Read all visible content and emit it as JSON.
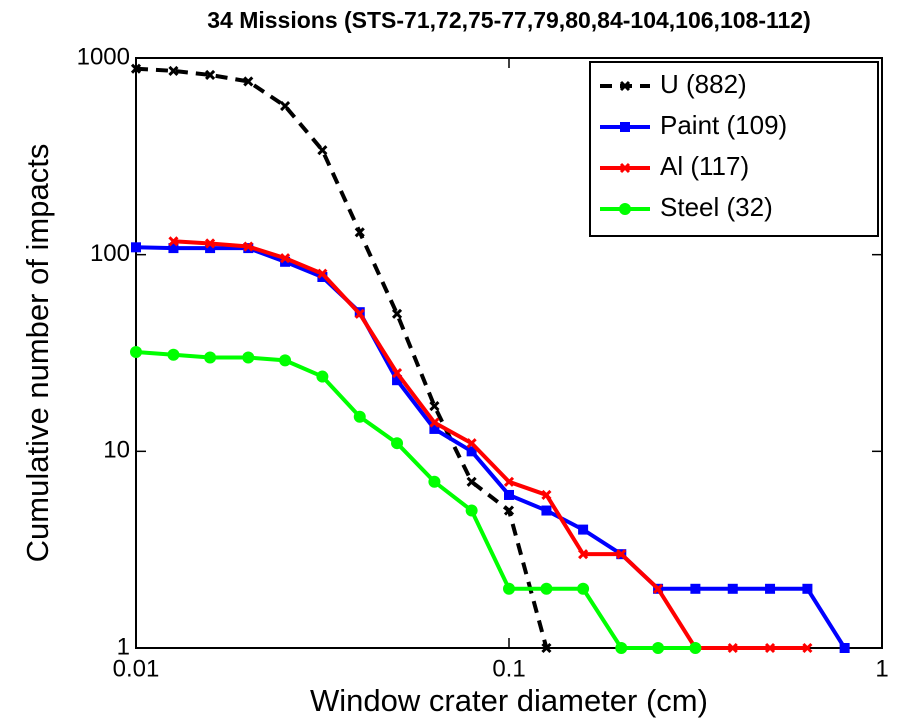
{
  "chart_data": {
    "type": "line",
    "title": "34 Missions (STS-71,72,75-77,79,80,84-104,106,108-112)",
    "xlabel": "Window crater diameter (cm)",
    "ylabel": "Cumulative number of impacts",
    "xscale": "log",
    "yscale": "log",
    "xlim": [
      0.01,
      1
    ],
    "ylim": [
      1,
      1000
    ],
    "xticks": [
      0.01,
      0.1,
      1
    ],
    "yticks": [
      1,
      10,
      100,
      1000
    ],
    "legend": "upper right",
    "series": [
      {
        "name": "U (882)",
        "color": "#000000",
        "linestyle": "dashed",
        "marker": "x",
        "x": [
          0.01,
          0.0126,
          0.0158,
          0.02,
          0.0251,
          0.0316,
          0.0398,
          0.0501,
          0.0631,
          0.0794,
          0.1,
          0.126
        ],
        "values": [
          882,
          860,
          820,
          760,
          570,
          340,
          130,
          50,
          17,
          7,
          5,
          1
        ]
      },
      {
        "name": "Paint (109)",
        "color": "#0000ff",
        "linestyle": "solid",
        "marker": "square",
        "x": [
          0.01,
          0.0126,
          0.0158,
          0.02,
          0.0251,
          0.0316,
          0.0398,
          0.0501,
          0.0631,
          0.0794,
          0.1,
          0.126,
          0.158,
          0.2,
          0.251,
          0.316,
          0.398,
          0.501,
          0.631,
          0.794
        ],
        "values": [
          109,
          108,
          108,
          108,
          92,
          77,
          51,
          23,
          13,
          10,
          6,
          5,
          4,
          3,
          2,
          2,
          2,
          2,
          2,
          1
        ]
      },
      {
        "name": "Al (117)",
        "color": "#ff0000",
        "linestyle": "solid",
        "marker": "x",
        "x": [
          0.0126,
          0.0158,
          0.02,
          0.0251,
          0.0316,
          0.0398,
          0.0501,
          0.0631,
          0.0794,
          0.1,
          0.126,
          0.158,
          0.2,
          0.251,
          0.316,
          0.398,
          0.501,
          0.631
        ],
        "values": [
          117,
          114,
          110,
          96,
          80,
          50,
          25,
          14,
          11,
          7,
          6,
          3,
          3,
          2,
          1,
          1,
          1,
          1
        ]
      },
      {
        "name": "Steel (32)",
        "color": "#00ff00",
        "linestyle": "solid",
        "marker": "circle",
        "x": [
          0.01,
          0.0126,
          0.0158,
          0.02,
          0.0251,
          0.0316,
          0.0398,
          0.0501,
          0.0631,
          0.0794,
          0.1,
          0.126,
          0.158,
          0.2,
          0.251,
          0.316
        ],
        "values": [
          32,
          31,
          30,
          30,
          29,
          24,
          15,
          11,
          7,
          5,
          2,
          2,
          2,
          1,
          1,
          1
        ]
      }
    ]
  }
}
